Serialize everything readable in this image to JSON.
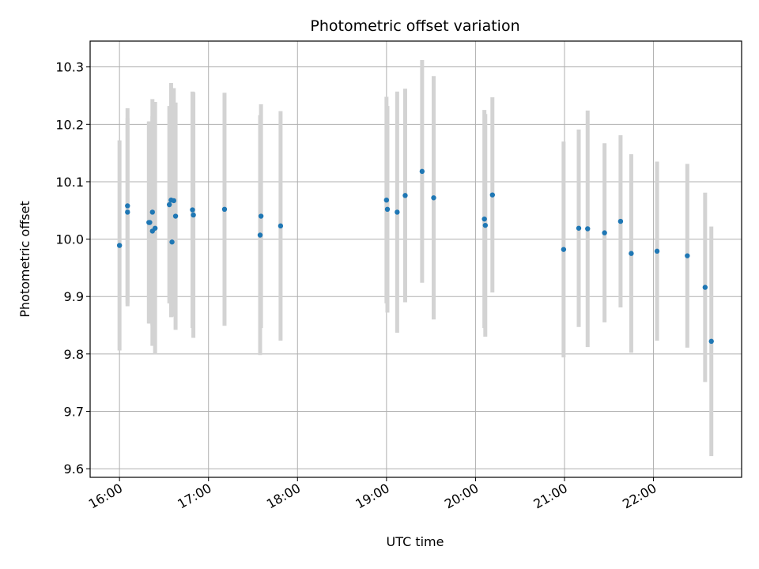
{
  "chart_data": {
    "type": "scatter",
    "title": "Photometric offset variation",
    "xlabel": "UTC time",
    "ylabel": "Photometric offset",
    "x_unit": "hours UTC",
    "xlim": [
      15.67,
      22.99
    ],
    "ylim": [
      9.585,
      10.345
    ],
    "grid": true,
    "marker_color": "#1f77b4",
    "errorbar_color": "#d3d3d3",
    "x_ticks": [
      {
        "value": 16,
        "label": "16:00"
      },
      {
        "value": 17,
        "label": "17:00"
      },
      {
        "value": 18,
        "label": "18:00"
      },
      {
        "value": 19,
        "label": "19:00"
      },
      {
        "value": 20,
        "label": "20:00"
      },
      {
        "value": 21,
        "label": "21:00"
      },
      {
        "value": 22,
        "label": "22:00"
      }
    ],
    "y_ticks": [
      {
        "value": 9.6,
        "label": "9.6"
      },
      {
        "value": 9.7,
        "label": "9.7"
      },
      {
        "value": 9.8,
        "label": "9.8"
      },
      {
        "value": 9.9,
        "label": "9.9"
      },
      {
        "value": 10.0,
        "label": "10.0"
      },
      {
        "value": 10.1,
        "label": "10.1"
      },
      {
        "value": 10.2,
        "label": "10.2"
      },
      {
        "value": 10.3,
        "label": "10.3"
      }
    ],
    "points": [
      {
        "x": 16.0,
        "y": 9.989,
        "err": 0.183
      },
      {
        "x": 16.09,
        "y": 10.058,
        "err": 0.17
      },
      {
        "x": 16.09,
        "y": 10.047,
        "err": 0.164
      },
      {
        "x": 16.33,
        "y": 10.029,
        "err": 0.176
      },
      {
        "x": 16.34,
        "y": 10.029,
        "err": 0.176
      },
      {
        "x": 16.37,
        "y": 10.047,
        "err": 0.197
      },
      {
        "x": 16.37,
        "y": 10.014,
        "err": 0.2
      },
      {
        "x": 16.4,
        "y": 10.019,
        "err": 0.22
      },
      {
        "x": 16.56,
        "y": 10.06,
        "err": 0.172
      },
      {
        "x": 16.58,
        "y": 10.068,
        "err": 0.204
      },
      {
        "x": 16.59,
        "y": 9.995,
        "err": 0.13
      },
      {
        "x": 16.61,
        "y": 10.067,
        "err": 0.196
      },
      {
        "x": 16.63,
        "y": 10.04,
        "err": 0.198
      },
      {
        "x": 16.82,
        "y": 10.051,
        "err": 0.206
      },
      {
        "x": 16.83,
        "y": 10.042,
        "err": 0.214
      },
      {
        "x": 17.18,
        "y": 10.052,
        "err": 0.203
      },
      {
        "x": 17.58,
        "y": 10.007,
        "err": 0.209
      },
      {
        "x": 17.59,
        "y": 10.04,
        "err": 0.195
      },
      {
        "x": 17.81,
        "y": 10.023,
        "err": 0.2
      },
      {
        "x": 19.0,
        "y": 10.068,
        "err": 0.18
      },
      {
        "x": 19.01,
        "y": 10.052,
        "err": 0.18
      },
      {
        "x": 19.12,
        "y": 10.047,
        "err": 0.21
      },
      {
        "x": 19.21,
        "y": 10.076,
        "err": 0.186
      },
      {
        "x": 19.4,
        "y": 10.118,
        "err": 0.194
      },
      {
        "x": 19.53,
        "y": 10.072,
        "err": 0.212
      },
      {
        "x": 20.1,
        "y": 10.035,
        "err": 0.19
      },
      {
        "x": 20.11,
        "y": 10.024,
        "err": 0.194
      },
      {
        "x": 20.19,
        "y": 10.077,
        "err": 0.17
      },
      {
        "x": 20.99,
        "y": 9.982,
        "err": 0.188
      },
      {
        "x": 21.16,
        "y": 10.019,
        "err": 0.172
      },
      {
        "x": 21.26,
        "y": 10.018,
        "err": 0.206
      },
      {
        "x": 21.45,
        "y": 10.011,
        "err": 0.156
      },
      {
        "x": 21.63,
        "y": 10.031,
        "err": 0.15
      },
      {
        "x": 21.75,
        "y": 9.975,
        "err": 0.173
      },
      {
        "x": 22.04,
        "y": 9.979,
        "err": 0.156
      },
      {
        "x": 22.38,
        "y": 9.971,
        "err": 0.16
      },
      {
        "x": 22.58,
        "y": 9.916,
        "err": 0.165
      },
      {
        "x": 22.65,
        "y": 9.822,
        "err": 0.2
      }
    ]
  }
}
